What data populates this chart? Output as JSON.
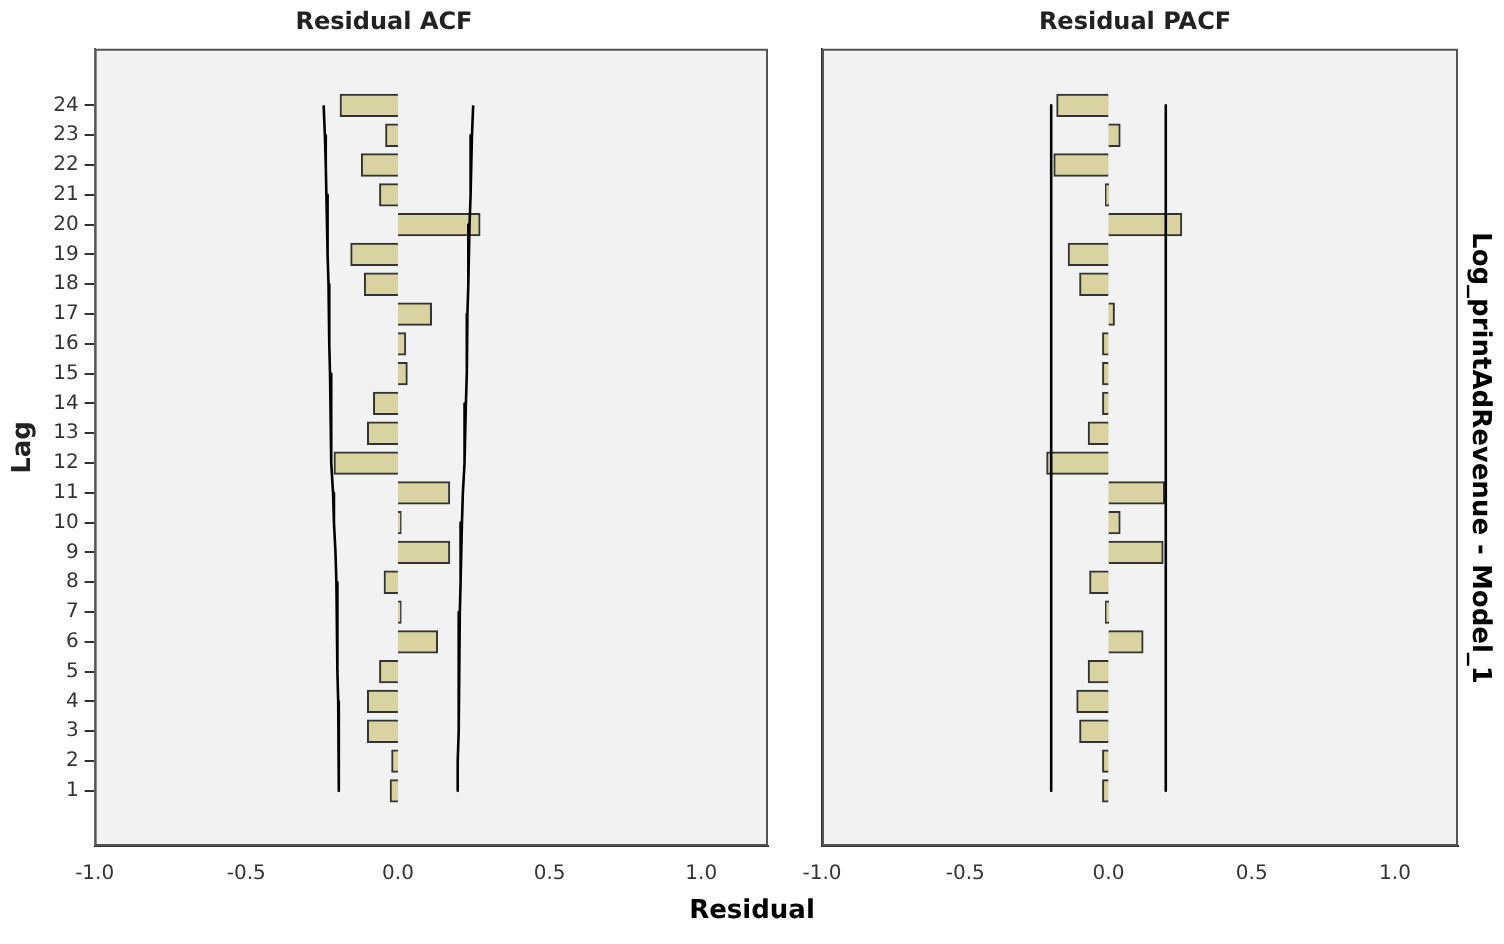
{
  "chart_data": [
    {
      "type": "bar",
      "orientation": "horizontal",
      "title": "Residual ACF",
      "ylabel": "Lag",
      "xlabel": "Residual",
      "categories": [
        "24",
        "23",
        "22",
        "21",
        "20",
        "19",
        "18",
        "17",
        "16",
        "15",
        "14",
        "13",
        "12",
        "11",
        "10",
        "9",
        "8",
        "7",
        "6",
        "5",
        "4",
        "3",
        "2",
        "1"
      ],
      "series": [
        {
          "type": "bar",
          "color": "#d9d3a1",
          "values": [
            -0.19,
            -0.04,
            -0.12,
            -0.06,
            0.27,
            -0.155,
            -0.11,
            0.11,
            0.025,
            0.03,
            -0.08,
            -0.1,
            -0.21,
            0.17,
            0.01,
            0.17,
            -0.045,
            0.01,
            0.13,
            -0.06,
            -0.1,
            -0.1,
            -0.02,
            -0.025
          ]
        },
        {
          "type": "line",
          "color": "#000000",
          "values": [
            0.248,
            0.244,
            0.241,
            0.238,
            0.236,
            0.233,
            0.231,
            0.229,
            0.228,
            0.226,
            0.224,
            0.221,
            0.218,
            0.214,
            0.211,
            0.208,
            0.205,
            0.204,
            0.202,
            0.201,
            0.2,
            0.198,
            0.197,
            0.197
          ]
        },
        {
          "type": "line",
          "color": "#000000",
          "values": [
            -0.245,
            -0.241,
            -0.238,
            -0.236,
            -0.233,
            -0.231,
            -0.229,
            -0.227,
            -0.226,
            -0.224,
            -0.222,
            -0.22,
            -0.218,
            -0.214,
            -0.211,
            -0.206,
            -0.203,
            -0.201,
            -0.2,
            -0.198,
            -0.197,
            -0.196,
            -0.195,
            -0.194
          ]
        }
      ],
      "xlim": [
        -1,
        1.22
      ],
      "xticks": [
        {
          "value": -1,
          "label": "-1.0"
        },
        {
          "value": -0.5,
          "label": "-0.5"
        },
        {
          "value": 0,
          "label": "0.0"
        },
        {
          "value": 0.5,
          "label": "0.5"
        },
        {
          "value": 1,
          "label": "1.0"
        }
      ],
      "grid": false,
      "legend": false
    },
    {
      "type": "bar",
      "orientation": "horizontal",
      "title": "Residual PACF",
      "y2label": "Log_printAdRevenue - Model_1",
      "tick_labels": "x",
      "categories": [
        "24",
        "23",
        "22",
        "21",
        "20",
        "19",
        "18",
        "17",
        "16",
        "15",
        "14",
        "13",
        "12",
        "11",
        "10",
        "9",
        "8",
        "7",
        "6",
        "5",
        "4",
        "3",
        "2",
        "1"
      ],
      "series": [
        {
          "type": "bar",
          "color": "#d9d3a1",
          "values": [
            -0.18,
            0.04,
            -0.19,
            -0.01,
            0.255,
            -0.14,
            -0.1,
            0.02,
            -0.02,
            -0.02,
            -0.02,
            -0.07,
            -0.215,
            0.195,
            0.04,
            0.19,
            -0.065,
            -0.01,
            0.12,
            -0.07,
            -0.11,
            -0.1,
            -0.02,
            -0.02
          ]
        },
        {
          "type": "line",
          "color": "#000000",
          "values": [
            0.2,
            0.2,
            0.2,
            0.2,
            0.2,
            0.2,
            0.2,
            0.2,
            0.2,
            0.2,
            0.2,
            0.2,
            0.2,
            0.2,
            0.2,
            0.2,
            0.2,
            0.2,
            0.2,
            0.2,
            0.2,
            0.2,
            0.2,
            0.2
          ]
        },
        {
          "type": "line",
          "color": "#000000",
          "values": [
            -0.2,
            -0.2,
            -0.2,
            -0.2,
            -0.2,
            -0.2,
            -0.2,
            -0.2,
            -0.2,
            -0.2,
            -0.2,
            -0.2,
            -0.2,
            -0.2,
            -0.2,
            -0.2,
            -0.2,
            -0.2,
            -0.2,
            -0.2,
            -0.2,
            -0.2,
            -0.2,
            -0.2
          ]
        }
      ],
      "xlim": [
        -1,
        1.22
      ],
      "xticks": [
        {
          "value": -1,
          "label": "-1.0"
        },
        {
          "value": -0.5,
          "label": "-0.5"
        },
        {
          "value": 0,
          "label": "0.0"
        },
        {
          "value": 0.5,
          "label": "0.5"
        },
        {
          "value": 1,
          "label": "1.0"
        }
      ],
      "grid": false,
      "legend": false
    }
  ]
}
